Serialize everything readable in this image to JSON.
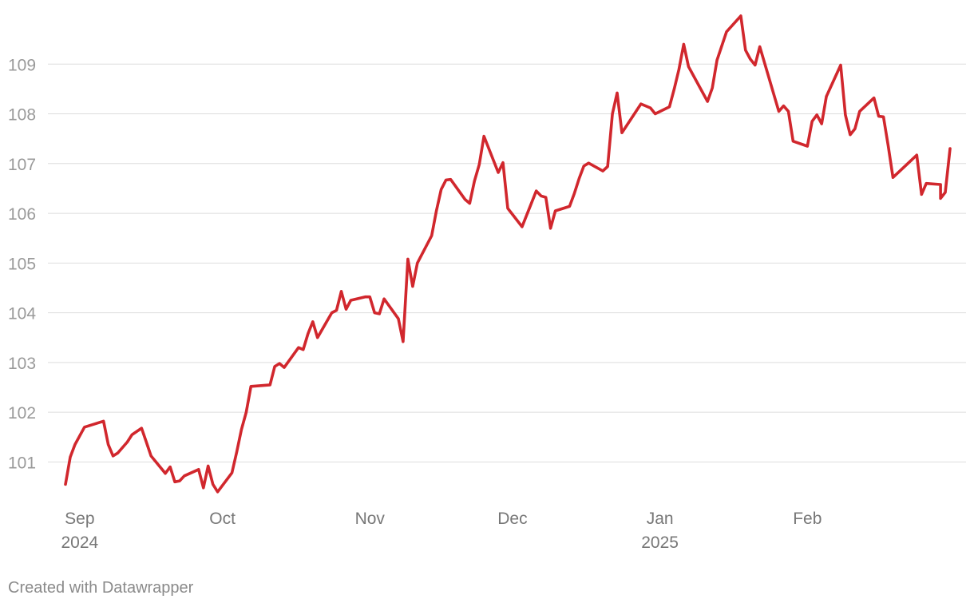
{
  "chart_data": {
    "type": "line",
    "title": "",
    "xlabel": "",
    "ylabel": "",
    "ylim": [
      100.3,
      110.0
    ],
    "grid": true,
    "yticks": [
      101,
      102,
      103,
      104,
      105,
      106,
      107,
      108,
      109
    ],
    "xticks": [
      {
        "date": "2024-09-01",
        "label": "Sep",
        "sublabel": "2024"
      },
      {
        "date": "2024-10-01",
        "label": "Oct",
        "sublabel": ""
      },
      {
        "date": "2024-11-01",
        "label": "Nov",
        "sublabel": ""
      },
      {
        "date": "2024-12-01",
        "label": "Dec",
        "sublabel": ""
      },
      {
        "date": "2025-01-01",
        "label": "Jan",
        "sublabel": "2025"
      },
      {
        "date": "2025-02-01",
        "label": "Feb",
        "sublabel": ""
      }
    ],
    "series": [
      {
        "color": "#d1272d",
        "points": [
          [
            "2024-08-29",
            100.55
          ],
          [
            "2024-08-30",
            101.1
          ],
          [
            "2024-08-31",
            101.35
          ],
          [
            "2024-09-02",
            101.7
          ],
          [
            "2024-09-06",
            101.82
          ],
          [
            "2024-09-07",
            101.35
          ],
          [
            "2024-09-08",
            101.12
          ],
          [
            "2024-09-09",
            101.18
          ],
          [
            "2024-09-11",
            101.4
          ],
          [
            "2024-09-12",
            101.55
          ],
          [
            "2024-09-14",
            101.68
          ],
          [
            "2024-09-15",
            101.4
          ],
          [
            "2024-09-16",
            101.12
          ],
          [
            "2024-09-19",
            100.77
          ],
          [
            "2024-09-20",
            100.9
          ],
          [
            "2024-09-21",
            100.6
          ],
          [
            "2024-09-22",
            100.62
          ],
          [
            "2024-09-23",
            100.72
          ],
          [
            "2024-09-26",
            100.85
          ],
          [
            "2024-09-27",
            100.48
          ],
          [
            "2024-09-28",
            100.92
          ],
          [
            "2024-09-29",
            100.55
          ],
          [
            "2024-09-30",
            100.4
          ],
          [
            "2024-10-03",
            100.78
          ],
          [
            "2024-10-04",
            101.2
          ],
          [
            "2024-10-05",
            101.65
          ],
          [
            "2024-10-06",
            102.0
          ],
          [
            "2024-10-07",
            102.52
          ],
          [
            "2024-10-11",
            102.55
          ],
          [
            "2024-10-12",
            102.92
          ],
          [
            "2024-10-13",
            102.98
          ],
          [
            "2024-10-14",
            102.9
          ],
          [
            "2024-10-17",
            103.3
          ],
          [
            "2024-10-18",
            103.26
          ],
          [
            "2024-10-19",
            103.58
          ],
          [
            "2024-10-20",
            103.82
          ],
          [
            "2024-10-21",
            103.5
          ],
          [
            "2024-10-24",
            104.0
          ],
          [
            "2024-10-25",
            104.05
          ],
          [
            "2024-10-26",
            104.43
          ],
          [
            "2024-10-27",
            104.07
          ],
          [
            "2024-10-28",
            104.25
          ],
          [
            "2024-10-31",
            104.32
          ],
          [
            "2024-11-01",
            104.32
          ],
          [
            "2024-11-02",
            104.0
          ],
          [
            "2024-11-03",
            103.98
          ],
          [
            "2024-11-04",
            104.28
          ],
          [
            "2024-11-07",
            103.88
          ],
          [
            "2024-11-08",
            103.42
          ],
          [
            "2024-11-09",
            105.08
          ],
          [
            "2024-11-10",
            104.53
          ],
          [
            "2024-11-11",
            105.0
          ],
          [
            "2024-11-14",
            105.55
          ],
          [
            "2024-11-15",
            106.05
          ],
          [
            "2024-11-16",
            106.48
          ],
          [
            "2024-11-17",
            106.67
          ],
          [
            "2024-11-18",
            106.68
          ],
          [
            "2024-11-21",
            106.28
          ],
          [
            "2024-11-22",
            106.2
          ],
          [
            "2024-11-23",
            106.65
          ],
          [
            "2024-11-24",
            106.98
          ],
          [
            "2024-11-25",
            107.55
          ],
          [
            "2024-11-28",
            106.82
          ],
          [
            "2024-11-29",
            107.02
          ],
          [
            "2024-11-30",
            106.1
          ],
          [
            "2024-12-03",
            105.73
          ],
          [
            "2024-12-06",
            106.45
          ],
          [
            "2024-12-07",
            106.35
          ],
          [
            "2024-12-08",
            106.32
          ],
          [
            "2024-12-09",
            105.7
          ],
          [
            "2024-12-10",
            106.05
          ],
          [
            "2024-12-13",
            106.14
          ],
          [
            "2024-12-14",
            106.4
          ],
          [
            "2024-12-15",
            106.7
          ],
          [
            "2024-12-16",
            106.95
          ],
          [
            "2024-12-17",
            107.01
          ],
          [
            "2024-12-20",
            106.85
          ],
          [
            "2024-12-21",
            106.94
          ],
          [
            "2024-12-22",
            108.0
          ],
          [
            "2024-12-23",
            108.42
          ],
          [
            "2024-12-24",
            107.62
          ],
          [
            "2024-12-28",
            108.2
          ],
          [
            "2024-12-30",
            108.12
          ],
          [
            "2024-12-31",
            108.0
          ],
          [
            "2025-01-03",
            108.14
          ],
          [
            "2025-01-04",
            108.5
          ],
          [
            "2025-01-05",
            108.9
          ],
          [
            "2025-01-06",
            109.4
          ],
          [
            "2025-01-07",
            108.95
          ],
          [
            "2025-01-11",
            108.25
          ],
          [
            "2025-01-12",
            108.52
          ],
          [
            "2025-01-13",
            109.08
          ],
          [
            "2025-01-15",
            109.65
          ],
          [
            "2025-01-18",
            109.97
          ],
          [
            "2025-01-19",
            109.28
          ],
          [
            "2025-01-20",
            109.1
          ],
          [
            "2025-01-21",
            108.98
          ],
          [
            "2025-01-22",
            109.35
          ],
          [
            "2025-01-26",
            108.05
          ],
          [
            "2025-01-27",
            108.16
          ],
          [
            "2025-01-28",
            108.05
          ],
          [
            "2025-01-29",
            107.45
          ],
          [
            "2025-02-01",
            107.35
          ],
          [
            "2025-02-02",
            107.85
          ],
          [
            "2025-02-03",
            107.98
          ],
          [
            "2025-02-04",
            107.8
          ],
          [
            "2025-02-05",
            108.35
          ],
          [
            "2025-02-08",
            108.98
          ],
          [
            "2025-02-09",
            107.98
          ],
          [
            "2025-02-10",
            107.58
          ],
          [
            "2025-02-11",
            107.7
          ],
          [
            "2025-02-12",
            108.05
          ],
          [
            "2025-02-15",
            108.32
          ],
          [
            "2025-02-16",
            107.95
          ],
          [
            "2025-02-17",
            107.94
          ],
          [
            "2025-02-18",
            107.35
          ],
          [
            "2025-02-19",
            106.72
          ],
          [
            "2025-02-24",
            107.17
          ],
          [
            "2025-02-25",
            106.38
          ],
          [
            "2025-02-26",
            106.6
          ],
          [
            "2025-02-29",
            106.58
          ],
          [
            "2025-03-01",
            106.3
          ],
          [
            "2025-03-02",
            106.42
          ],
          [
            "2025-03-03",
            107.3
          ]
        ]
      }
    ]
  },
  "footer": {
    "credit": "Created with Datawrapper"
  }
}
